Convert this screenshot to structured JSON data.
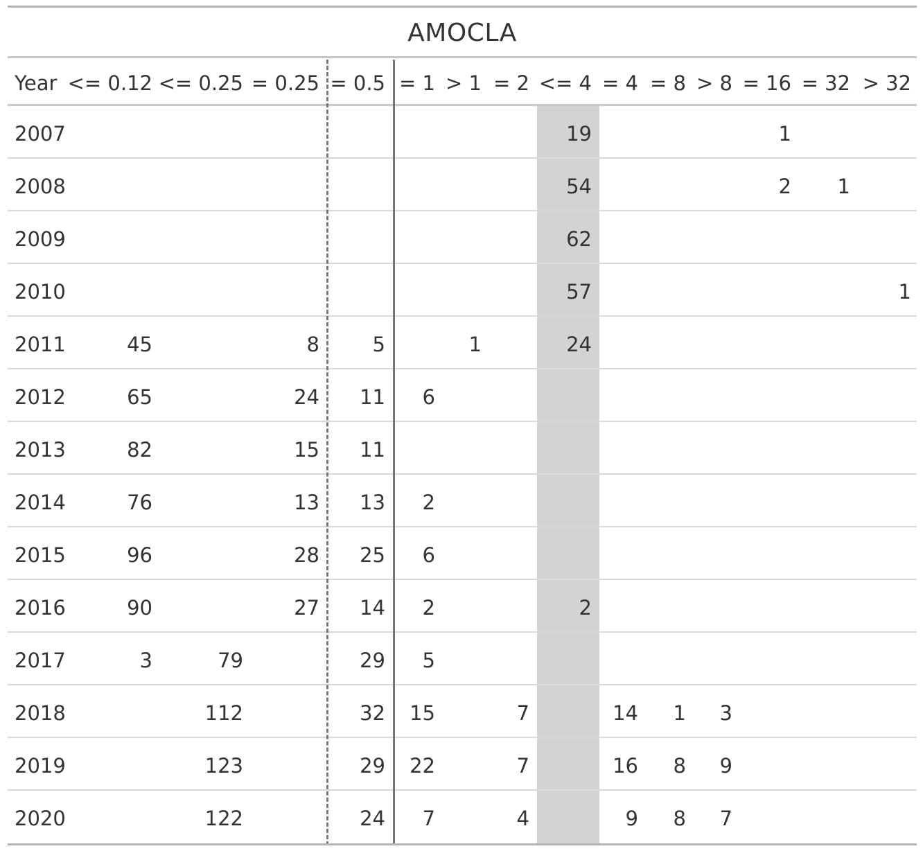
{
  "chart_data": {
    "type": "table",
    "title": "AMOCLA",
    "columns": [
      "Year",
      "<= 0.12",
      "<= 0.25",
      "= 0.25",
      "= 0.5",
      "= 1",
      "> 1",
      "= 2",
      "<= 4",
      "= 4",
      "= 8",
      "> 8",
      "= 16",
      "= 32",
      "> 32"
    ],
    "rows": [
      [
        "2007",
        "",
        "",
        "",
        "",
        "",
        "",
        "",
        "19",
        "",
        "",
        "",
        "1",
        "",
        ""
      ],
      [
        "2008",
        "",
        "",
        "",
        "",
        "",
        "",
        "",
        "54",
        "",
        "",
        "",
        "2",
        "1",
        ""
      ],
      [
        "2009",
        "",
        "",
        "",
        "",
        "",
        "",
        "",
        "62",
        "",
        "",
        "",
        "",
        "",
        ""
      ],
      [
        "2010",
        "",
        "",
        "",
        "",
        "",
        "",
        "",
        "57",
        "",
        "",
        "",
        "",
        "",
        "1"
      ],
      [
        "2011",
        "45",
        "",
        "8",
        "5",
        "",
        "1",
        "",
        "24",
        "",
        "",
        "",
        "",
        "",
        ""
      ],
      [
        "2012",
        "65",
        "",
        "24",
        "11",
        "6",
        "",
        "",
        "",
        "",
        "",
        "",
        "",
        "",
        ""
      ],
      [
        "2013",
        "82",
        "",
        "15",
        "11",
        "",
        "",
        "",
        "",
        "",
        "",
        "",
        "",
        "",
        ""
      ],
      [
        "2014",
        "76",
        "",
        "13",
        "13",
        "2",
        "",
        "",
        "",
        "",
        "",
        "",
        "",
        "",
        ""
      ],
      [
        "2015",
        "96",
        "",
        "28",
        "25",
        "6",
        "",
        "",
        "",
        "",
        "",
        "",
        "",
        "",
        ""
      ],
      [
        "2016",
        "90",
        "",
        "27",
        "14",
        "2",
        "",
        "",
        "2",
        "",
        "",
        "",
        "",
        "",
        ""
      ],
      [
        "2017",
        "3",
        "79",
        "",
        "29",
        "5",
        "",
        "",
        "",
        "",
        "",
        "",
        "",
        "",
        ""
      ],
      [
        "2018",
        "",
        "112",
        "",
        "32",
        "15",
        "",
        "7",
        "",
        "14",
        "1",
        "3",
        "",
        "",
        ""
      ],
      [
        "2019",
        "",
        "123",
        "",
        "29",
        "22",
        "",
        "7",
        "",
        "16",
        "8",
        "9",
        "",
        "",
        ""
      ],
      [
        "2020",
        "",
        "122",
        "",
        "24",
        "7",
        "",
        "4",
        "",
        "9",
        "8",
        "7",
        "",
        "",
        ""
      ]
    ],
    "highlighted_column": "<= 4",
    "highlight_color": "#d3d3d3",
    "dashed_divider_after": "= 0.25",
    "solid_divider_after": "= 0.5"
  }
}
